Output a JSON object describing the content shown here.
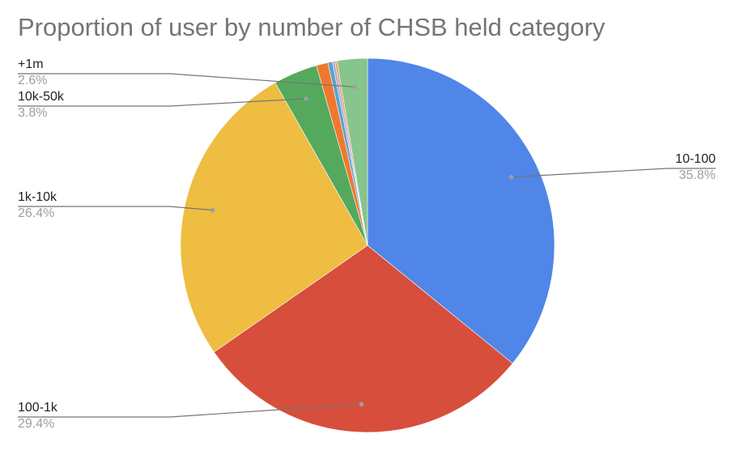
{
  "chart_data": {
    "type": "pie",
    "title": "Proportion of user by number of CHSB held category",
    "start_angle_deg": 0,
    "direction": "clockwise",
    "slices": [
      {
        "label": "10-100",
        "value": 35.8,
        "value_label": "35.8%",
        "color": "#4f86e8",
        "labeled": true
      },
      {
        "label": "100-1k",
        "value": 29.4,
        "value_label": "29.4%",
        "color": "#d74e3d",
        "labeled": true
      },
      {
        "label": "1k-10k",
        "value": 26.4,
        "value_label": "26.4%",
        "color": "#eebd41",
        "labeled": true
      },
      {
        "label": "10k-50k",
        "value": 3.8,
        "value_label": "3.8%",
        "color": "#55a95c",
        "labeled": true
      },
      {
        "label": "",
        "value": 1.0,
        "value_label": "",
        "color": "#f0782e",
        "labeled": false
      },
      {
        "label": "",
        "value": 0.4,
        "value_label": "",
        "color": "#5aa3cf",
        "labeled": false
      },
      {
        "label": "",
        "value": 0.2,
        "value_label": "",
        "color": "#a6a2d4",
        "labeled": false
      },
      {
        "label": "",
        "value": 0.2,
        "value_label": "",
        "color": "#e9a06b",
        "labeled": false
      },
      {
        "label": "+1m",
        "value": 2.6,
        "value_label": "2.6%",
        "color": "#86c58b",
        "labeled": true
      }
    ]
  }
}
